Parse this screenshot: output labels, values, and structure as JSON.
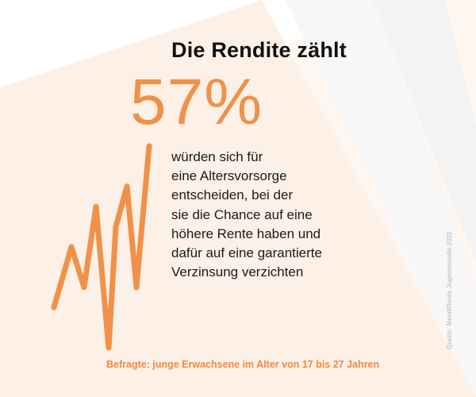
{
  "headline": "Die Rendite zählt",
  "stat": {
    "value": "57%",
    "numeric_value": 57,
    "description_lines": [
      "würden sich für",
      "eine Altersvorsorge",
      "entscheiden, bei der",
      "sie die Chance auf eine",
      "höhere Rente haben und",
      "dafür auf eine garantierte",
      "Verzinsung verzichten"
    ]
  },
  "footnote": "Befragte: junge Erwachsene im Alter von 17 bis 27 Jahren",
  "source": "Quelle: MetallRente Jugendstudie 2022",
  "colors": {
    "accent": "#f0914a",
    "text": "#1a1a1a",
    "background_rays": "#fdf1e8"
  },
  "chart_data": {
    "type": "line",
    "title": "",
    "series": [
      {
        "values": [
          2,
          5,
          3,
          7,
          0,
          6,
          8,
          3,
          10
        ]
      }
    ],
    "decorative": true
  }
}
